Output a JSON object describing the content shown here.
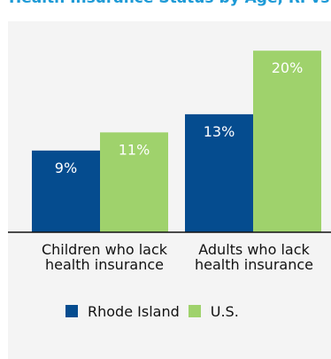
{
  "chart_data": {
    "type": "bar",
    "title": "Health Insurance Status by Age, RI vs. U.S.",
    "categories": [
      [
        "Children who lack",
        "health insurance"
      ],
      [
        "Adults who lack",
        "health insurance"
      ]
    ],
    "series": [
      {
        "name": "Rhode Island",
        "values": [
          9,
          13
        ],
        "labels": [
          "9%",
          "13%"
        ],
        "color": "#054c8f"
      },
      {
        "name": "U.S.",
        "values": [
          11,
          20
        ],
        "labels": [
          "11%",
          "20%"
        ],
        "color": "#9fd26c"
      }
    ],
    "ylim": [
      0,
      20.8
    ],
    "grid": false,
    "legend_position": "bottom"
  }
}
